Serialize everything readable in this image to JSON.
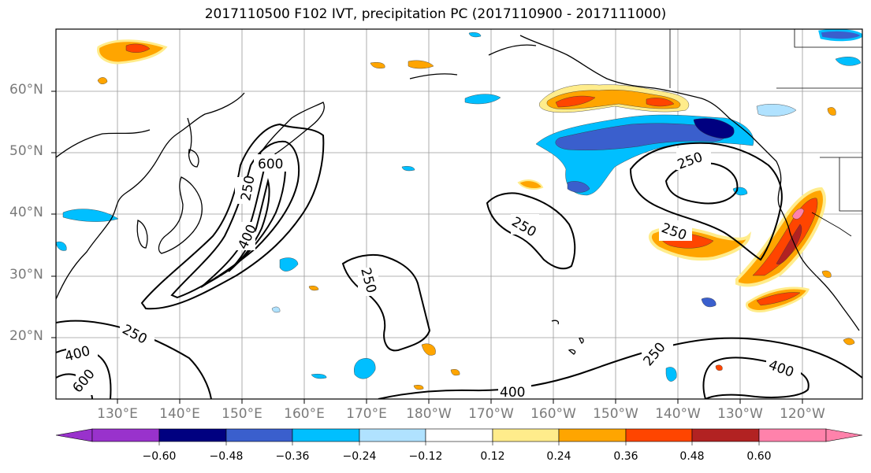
{
  "title": "2017110500 F102 IVT, precipitation PC (2017110900 - 2017111000)",
  "lat_labels": [
    "60°N",
    "50°N",
    "40°N",
    "30°N",
    "20°N"
  ],
  "lon_labels": [
    "130°E",
    "140°E",
    "150°E",
    "160°E",
    "170°E",
    "180°W",
    "170°W",
    "160°W",
    "150°W",
    "140°W",
    "130°W",
    "120°W"
  ],
  "contour_labels": [
    "600",
    "250",
    "400",
    "250",
    "250",
    "250",
    "250",
    "250",
    "250",
    "400",
    "400",
    "600",
    "400"
  ],
  "colorbar": {
    "ticks": [
      "−0.60",
      "−0.48",
      "−0.36",
      "−0.24",
      "−0.12",
      "0.12",
      "0.24",
      "0.36",
      "0.48",
      "0.60"
    ],
    "colors": [
      "#9932cc",
      "#000080",
      "#3a5fcd",
      "#00bfff",
      "#b0e2ff",
      "#ffffff",
      "#ffec8b",
      "#ffa500",
      "#ff4500",
      "#b22222",
      "#ff82ab"
    ]
  },
  "shading_colors": {
    "neg_light": "#b0e2ff",
    "neg_mid": "#00bfff",
    "neg_dark": "#3a5fcd",
    "neg_darkest": "#000080",
    "pos_light": "#ffec8b",
    "pos_mid": "#ffa500",
    "pos_dark": "#ff4500",
    "pos_darkest": "#b22222"
  }
}
